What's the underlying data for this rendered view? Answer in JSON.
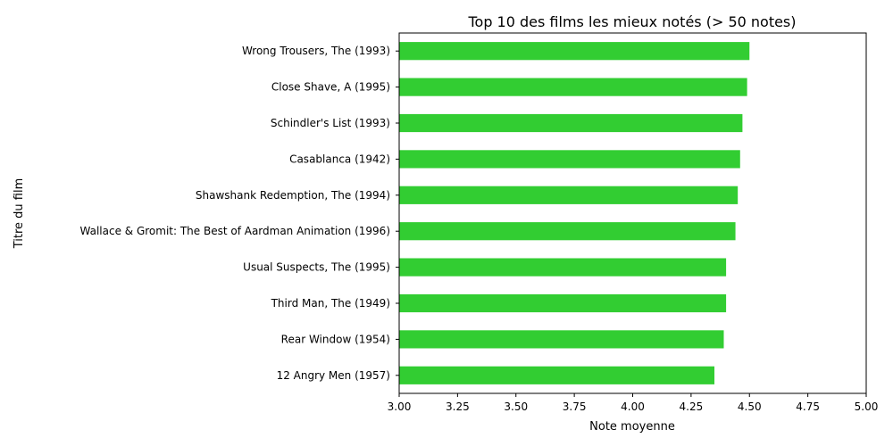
{
  "chart_data": {
    "type": "bar",
    "orientation": "horizontal",
    "title": "Top 10 des films les mieux notés (> 50 notes)",
    "xlabel": "Note moyenne",
    "ylabel": "Titre du film",
    "xlim": [
      3.0,
      5.0
    ],
    "xticks": [
      "3.00",
      "3.25",
      "3.50",
      "3.75",
      "4.00",
      "4.25",
      "4.50",
      "4.75",
      "5.00"
    ],
    "grid": false,
    "bar_color": "#32cd32",
    "categories": [
      "Wrong Trousers, The (1993)",
      "Close Shave, A (1995)",
      "Schindler's List (1993)",
      "Casablanca (1942)",
      "Shawshank Redemption, The (1994)",
      "Wallace & Gromit: The Best of Aardman Animation (1996)",
      "Usual Suspects, The (1995)",
      "Third Man, The (1949)",
      "Rear Window (1954)",
      "12 Angry Men (1957)"
    ],
    "values": [
      4.5,
      4.49,
      4.47,
      4.46,
      4.45,
      4.44,
      4.4,
      4.4,
      4.39,
      4.35
    ]
  }
}
